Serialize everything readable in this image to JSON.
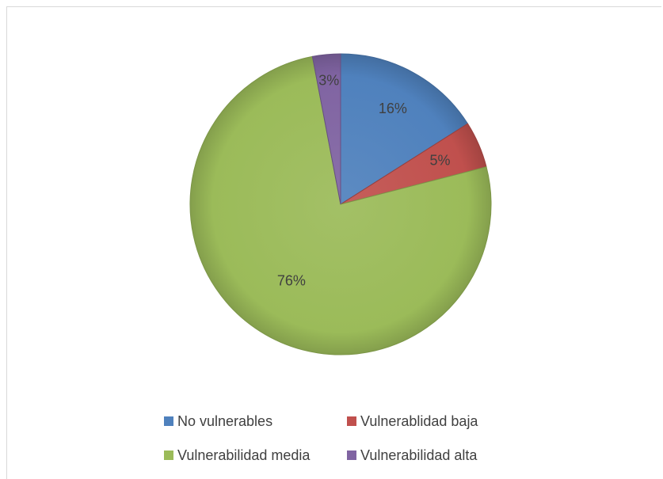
{
  "chart_data": {
    "type": "pie",
    "title": "",
    "series": [
      {
        "name": "No vulnerables",
        "value": 16,
        "label": "16%",
        "color": "#4f81bd"
      },
      {
        "name": "Vulnerablidad baja",
        "value": 5,
        "label": "5%",
        "color": "#c0504d"
      },
      {
        "name": "Vulnerabilidad media",
        "value": 76,
        "label": "76%",
        "color": "#9bbb59"
      },
      {
        "name": "Vulnerabilidad alta",
        "value": 3,
        "label": "3%",
        "color": "#8064a2"
      }
    ],
    "legend_position": "bottom"
  }
}
